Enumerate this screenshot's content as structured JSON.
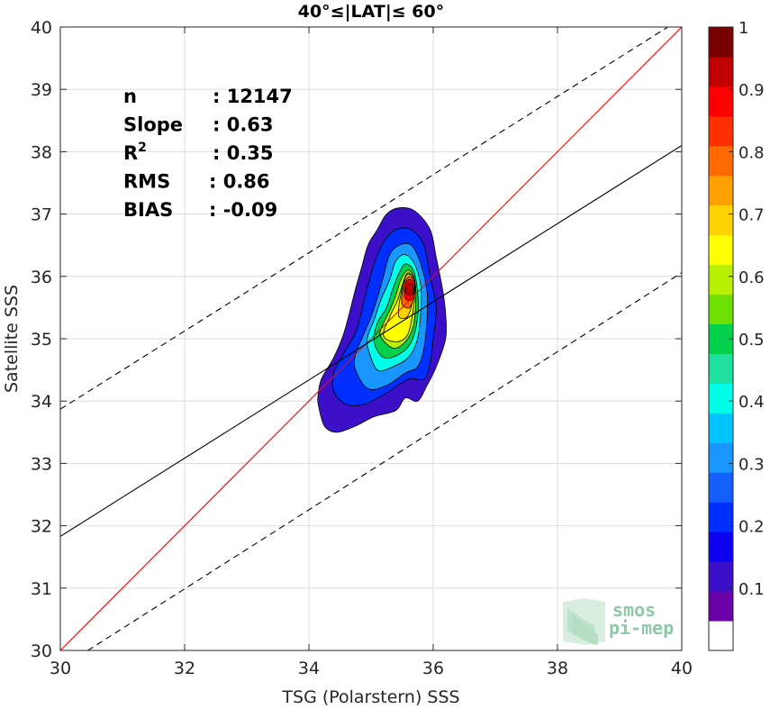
{
  "chart_data": {
    "type": "scatter",
    "subtype": "density-contour",
    "title": "40°≤|LAT|≤ 60°",
    "xlabel": "TSG (Polarstern) SSS",
    "ylabel": "Satellite SSS",
    "xlim": [
      30,
      40
    ],
    "ylim": [
      30,
      40
    ],
    "xticks": [
      30,
      32,
      34,
      36,
      38,
      40
    ],
    "yticks": [
      30,
      31,
      32,
      33,
      34,
      35,
      36,
      37,
      38,
      39,
      40
    ],
    "grid": true,
    "stats": [
      {
        "name": "n",
        "value": ": 12147"
      },
      {
        "name": "Slope",
        "value": ": 0.63"
      },
      {
        "name": "R",
        "sup": "2",
        "value": ": 0.35"
      },
      {
        "name": "RMS",
        "value": ": 0.86"
      },
      {
        "name": "BIAS",
        "value": ": -0.09"
      }
    ],
    "lines": [
      {
        "name": "1:1",
        "color": "#ff0000",
        "style": "solid",
        "points": [
          [
            30,
            30
          ],
          [
            40,
            40
          ]
        ]
      },
      {
        "name": "fit",
        "color": "#000000",
        "style": "solid",
        "points": [
          [
            30,
            31.83
          ],
          [
            40,
            38.1
          ]
        ]
      },
      {
        "name": "fit+",
        "color": "#000000",
        "style": "dashed",
        "points": [
          [
            30,
            33.87
          ],
          [
            40,
            40.14
          ]
        ]
      },
      {
        "name": "fit-",
        "color": "#000000",
        "style": "dashed",
        "points": [
          [
            30,
            29.72
          ],
          [
            40,
            36.06
          ]
        ]
      }
    ],
    "density_peak": {
      "x": 35.62,
      "y": 35.8
    },
    "colorbar": {
      "min": 0,
      "max": 1,
      "ticks": [
        0.1,
        0.2,
        0.3,
        0.4,
        0.5,
        0.6,
        0.7,
        0.8,
        0.9,
        1
      ],
      "tick_labels": [
        "0.1",
        "0.2",
        "0.3",
        "0.4",
        "0.5",
        "0.6",
        "0.7",
        "0.8",
        "0.9",
        "1"
      ],
      "colors": [
        "#ffffff",
        "#6a00a8",
        "#3b10c8",
        "#0d00f0",
        "#0030ff",
        "#1460ff",
        "#1a96ff",
        "#00c4ff",
        "#00ffe8",
        "#20e0a0",
        "#00d04c",
        "#6ee000",
        "#b8f000",
        "#ffff00",
        "#ffd200",
        "#ffa000",
        "#ff6a00",
        "#ff3000",
        "#ff0000",
        "#c00000",
        "#7a0000"
      ]
    },
    "contours": [
      {
        "level": 0.05,
        "color": "#3b10c8",
        "points": [
          [
            34.15,
            33.95
          ],
          [
            34.25,
            33.6
          ],
          [
            34.45,
            33.5
          ],
          [
            34.75,
            33.6
          ],
          [
            35.05,
            33.75
          ],
          [
            35.4,
            33.85
          ],
          [
            35.55,
            34.05
          ],
          [
            35.75,
            34.0
          ],
          [
            35.9,
            34.25
          ],
          [
            36.05,
            34.55
          ],
          [
            36.2,
            35.0
          ],
          [
            36.2,
            35.4
          ],
          [
            36.15,
            35.8
          ],
          [
            36.05,
            36.3
          ],
          [
            35.95,
            36.75
          ],
          [
            35.7,
            37.05
          ],
          [
            35.45,
            37.1
          ],
          [
            35.25,
            37.0
          ],
          [
            35.1,
            36.75
          ],
          [
            34.95,
            36.5
          ],
          [
            34.85,
            36.15
          ],
          [
            34.75,
            35.8
          ],
          [
            34.65,
            35.4
          ],
          [
            34.55,
            35.05
          ],
          [
            34.4,
            34.7
          ],
          [
            34.2,
            34.35
          ],
          [
            34.15,
            34.1
          ]
        ]
      },
      {
        "level": 0.15,
        "color": "#0030ff",
        "points": [
          [
            34.4,
            34.15
          ],
          [
            34.6,
            33.95
          ],
          [
            34.9,
            33.95
          ],
          [
            35.2,
            34.1
          ],
          [
            35.6,
            34.35
          ],
          [
            35.85,
            34.35
          ],
          [
            35.95,
            34.6
          ],
          [
            36.0,
            35.0
          ],
          [
            36.05,
            35.5
          ],
          [
            35.95,
            36.0
          ],
          [
            35.85,
            36.5
          ],
          [
            35.65,
            36.75
          ],
          [
            35.4,
            36.75
          ],
          [
            35.2,
            36.55
          ],
          [
            35.05,
            36.2
          ],
          [
            34.95,
            35.85
          ],
          [
            34.85,
            35.45
          ],
          [
            34.75,
            35.1
          ],
          [
            34.55,
            34.75
          ],
          [
            34.4,
            34.45
          ]
        ]
      },
      {
        "level": 0.25,
        "color": "#1a96ff",
        "points": [
          [
            34.75,
            34.5
          ],
          [
            34.95,
            34.2
          ],
          [
            35.25,
            34.25
          ],
          [
            35.55,
            34.45
          ],
          [
            35.75,
            34.55
          ],
          [
            35.85,
            34.85
          ],
          [
            35.9,
            35.3
          ],
          [
            35.9,
            35.75
          ],
          [
            35.8,
            36.2
          ],
          [
            35.65,
            36.5
          ],
          [
            35.45,
            36.5
          ],
          [
            35.3,
            36.35
          ],
          [
            35.2,
            36.0
          ],
          [
            35.1,
            35.65
          ],
          [
            35.0,
            35.35
          ],
          [
            34.85,
            35.0
          ],
          [
            34.75,
            34.75
          ]
        ]
      },
      {
        "level": 0.35,
        "color": "#00ffe8",
        "points": [
          [
            34.95,
            34.85
          ],
          [
            35.1,
            34.5
          ],
          [
            35.35,
            34.55
          ],
          [
            35.6,
            34.7
          ],
          [
            35.75,
            35.0
          ],
          [
            35.8,
            35.45
          ],
          [
            35.8,
            35.85
          ],
          [
            35.7,
            36.2
          ],
          [
            35.55,
            36.35
          ],
          [
            35.4,
            36.25
          ],
          [
            35.3,
            35.95
          ],
          [
            35.15,
            35.6
          ],
          [
            35.05,
            35.3
          ],
          [
            34.95,
            35.05
          ]
        ]
      },
      {
        "level": 0.45,
        "color": "#00d04c",
        "points": [
          [
            35.05,
            34.95
          ],
          [
            35.2,
            34.7
          ],
          [
            35.45,
            34.75
          ],
          [
            35.65,
            34.95
          ],
          [
            35.75,
            35.35
          ],
          [
            35.75,
            35.75
          ],
          [
            35.68,
            36.1
          ],
          [
            35.55,
            36.2
          ],
          [
            35.45,
            36.05
          ],
          [
            35.35,
            35.8
          ],
          [
            35.25,
            35.5
          ],
          [
            35.1,
            35.25
          ]
        ]
      },
      {
        "level": 0.55,
        "color": "#b8f000",
        "points": [
          [
            35.15,
            35.05
          ],
          [
            35.35,
            34.85
          ],
          [
            35.55,
            34.95
          ],
          [
            35.68,
            35.2
          ],
          [
            35.72,
            35.6
          ],
          [
            35.7,
            35.95
          ],
          [
            35.6,
            36.1
          ],
          [
            35.48,
            35.95
          ],
          [
            35.4,
            35.7
          ],
          [
            35.3,
            35.45
          ],
          [
            35.2,
            35.25
          ]
        ]
      },
      {
        "level": 0.6,
        "color": "#ffff00",
        "points": [
          [
            35.2,
            35.05
          ],
          [
            35.4,
            34.95
          ],
          [
            35.58,
            35.05
          ],
          [
            35.66,
            35.35
          ],
          [
            35.7,
            35.7
          ],
          [
            35.67,
            35.98
          ],
          [
            35.58,
            36.05
          ],
          [
            35.5,
            35.85
          ],
          [
            35.42,
            35.6
          ],
          [
            35.3,
            35.35
          ]
        ]
      },
      {
        "level": 0.7,
        "color": "#ffd200",
        "points": [
          [
            35.45,
            35.35
          ],
          [
            35.58,
            35.35
          ],
          [
            35.66,
            35.55
          ],
          [
            35.7,
            35.8
          ],
          [
            35.67,
            36.0
          ],
          [
            35.57,
            36.02
          ],
          [
            35.5,
            35.8
          ],
          [
            35.45,
            35.55
          ]
        ]
      },
      {
        "level": 0.8,
        "color": "#ff6a00",
        "points": [
          [
            35.5,
            35.55
          ],
          [
            35.62,
            35.5
          ],
          [
            35.7,
            35.7
          ],
          [
            35.7,
            35.92
          ],
          [
            35.62,
            36.0
          ],
          [
            35.53,
            35.9
          ],
          [
            35.5,
            35.72
          ]
        ]
      },
      {
        "level": 0.9,
        "color": "#ff0000",
        "points": [
          [
            35.55,
            35.65
          ],
          [
            35.65,
            35.62
          ],
          [
            35.7,
            35.78
          ],
          [
            35.68,
            35.92
          ],
          [
            35.6,
            35.95
          ],
          [
            35.54,
            35.85
          ]
        ]
      },
      {
        "level": 0.97,
        "color": "#c00000",
        "points": [
          [
            35.58,
            35.72
          ],
          [
            35.66,
            35.7
          ],
          [
            35.68,
            35.82
          ],
          [
            35.64,
            35.9
          ],
          [
            35.58,
            35.87
          ],
          [
            35.56,
            35.78
          ]
        ]
      }
    ]
  },
  "logo": {
    "line1": "smos",
    "line2": "pi-mep"
  }
}
